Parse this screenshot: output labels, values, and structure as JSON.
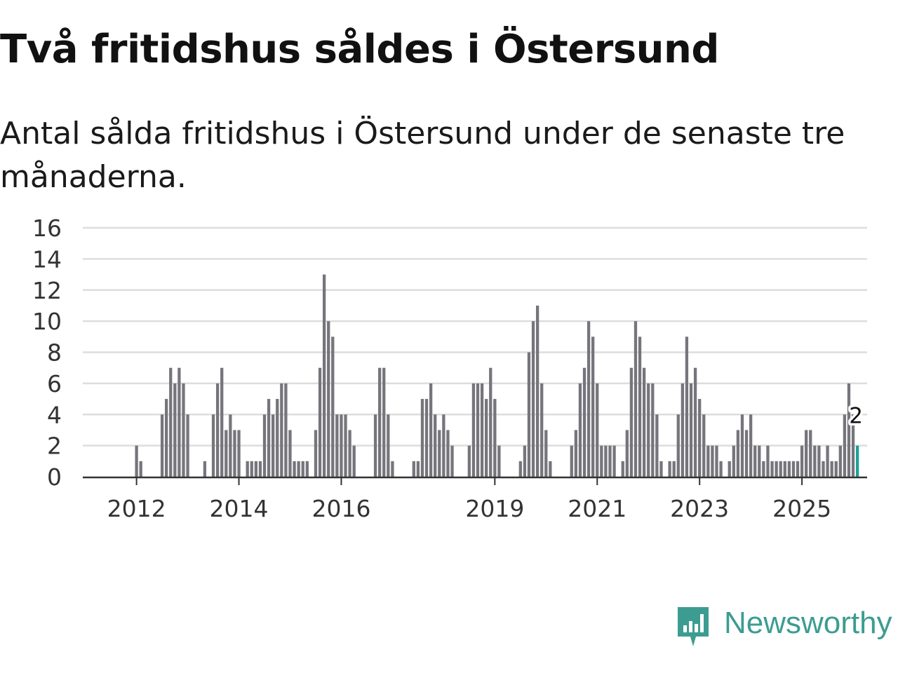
{
  "title": "Två fritidshus såldes i Östersund",
  "subtitle": "Antal sålda fritidshus i Östersund under de senaste tre månaderna.",
  "brand": {
    "name": "Newsworthy"
  },
  "colors": {
    "bar": "#76757c",
    "highlight": "#1aa197",
    "grid": "#dddddd",
    "axis": "#333333",
    "text": "#333333",
    "brand": "#3d9c92"
  },
  "chart_data": {
    "type": "bar",
    "title": "Två fritidshus såldes i Östersund",
    "subtitle": "Antal sålda fritidshus i Östersund under de senaste tre månaderna.",
    "xlabel": "",
    "ylabel": "",
    "ylim": [
      0,
      16
    ],
    "y_ticks": [
      0,
      2,
      4,
      6,
      8,
      10,
      12,
      14,
      16
    ],
    "x_ticks": [
      {
        "label": "2012",
        "month_index": 12
      },
      {
        "label": "2014",
        "month_index": 36
      },
      {
        "label": "2016",
        "month_index": 60
      },
      {
        "label": "2019",
        "month_index": 96
      },
      {
        "label": "2021",
        "month_index": 120
      },
      {
        "label": "2023",
        "month_index": 144
      },
      {
        "label": "2025",
        "month_index": 168
      }
    ],
    "grid": true,
    "start": "2011-01",
    "granularity": "month",
    "highlight_label": "2",
    "values": [
      0,
      0,
      0,
      0,
      0,
      0,
      0,
      0,
      0,
      0,
      0,
      0,
      2,
      1,
      0,
      0,
      0,
      0,
      4,
      5,
      7,
      6,
      7,
      6,
      4,
      0,
      0,
      0,
      1,
      0,
      4,
      6,
      7,
      3,
      4,
      3,
      3,
      0,
      1,
      1,
      1,
      1,
      4,
      5,
      4,
      5,
      6,
      6,
      3,
      1,
      1,
      1,
      1,
      0,
      3,
      7,
      13,
      10,
      9,
      4,
      4,
      4,
      3,
      2,
      0,
      0,
      0,
      0,
      4,
      7,
      7,
      4,
      1,
      0,
      0,
      0,
      0,
      1,
      1,
      5,
      5,
      6,
      4,
      3,
      4,
      3,
      2,
      0,
      0,
      0,
      2,
      6,
      6,
      6,
      5,
      7,
      5,
      2,
      0,
      0,
      0,
      0,
      1,
      2,
      8,
      10,
      11,
      6,
      3,
      1,
      0,
      0,
      0,
      0,
      2,
      3,
      6,
      7,
      10,
      9,
      6,
      2,
      2,
      2,
      2,
      0,
      1,
      3,
      7,
      10,
      9,
      7,
      6,
      6,
      4,
      1,
      0,
      1,
      1,
      4,
      6,
      9,
      6,
      7,
      5,
      4,
      2,
      2,
      2,
      1,
      0,
      1,
      2,
      3,
      4,
      3,
      4,
      2,
      2,
      1,
      2,
      1,
      1,
      1,
      1,
      1,
      1,
      1,
      2,
      3,
      3,
      2,
      2,
      1,
      2,
      1,
      1,
      2,
      4,
      6,
      4,
      2
    ]
  }
}
